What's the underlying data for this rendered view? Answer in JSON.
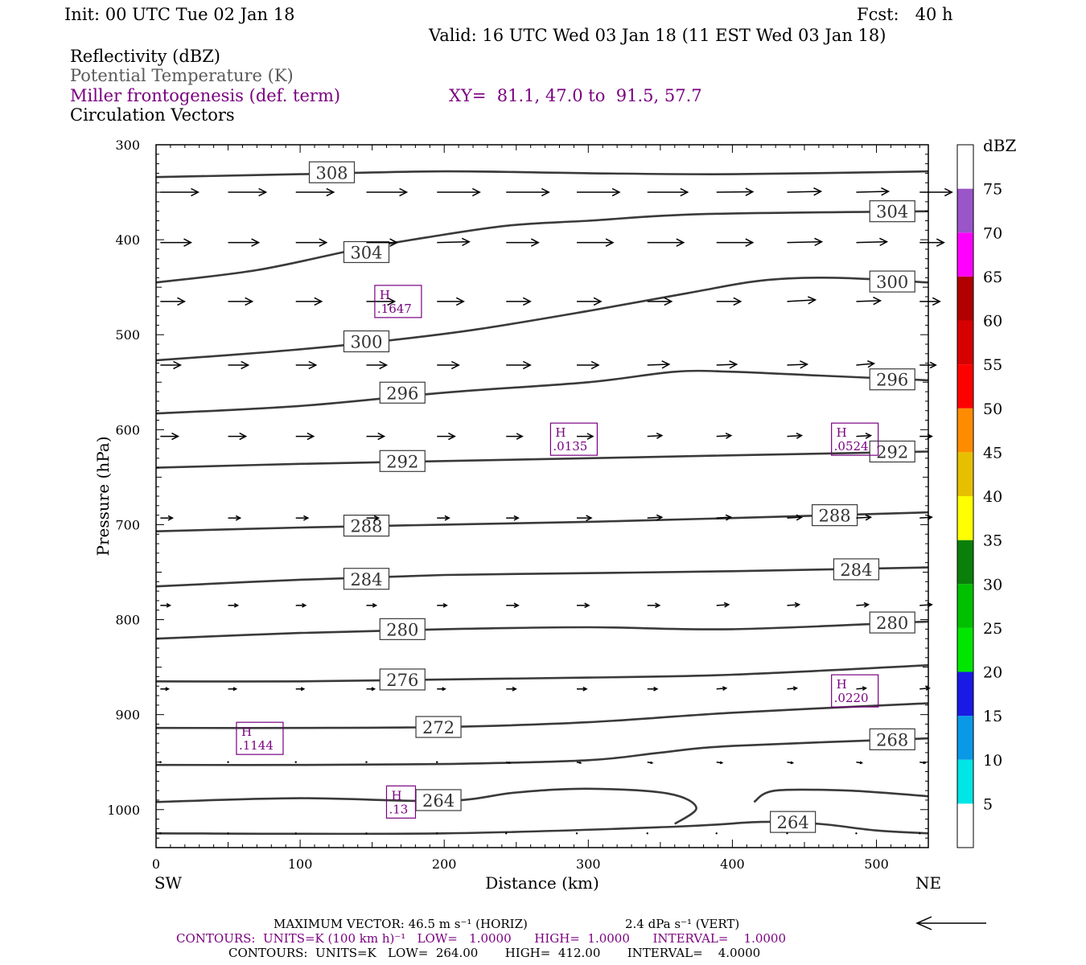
{
  "header": {
    "init": "Init: 00 UTC Tue 02 Jan 18",
    "fcst": "Fcst:   40 h",
    "valid": "Valid: 16 UTC Wed 03 Jan 18 (11 EST Wed 03 Jan 18)",
    "fields": [
      {
        "text": "Reflectivity (dBZ)",
        "color": "#000000"
      },
      {
        "text": "Potential Temperature (K)",
        "color": "#5a5a5a"
      },
      {
        "text": "Miller frontogenesis (def. term)",
        "color": "#7a0080"
      },
      {
        "text": "Circulation Vectors",
        "color": "#000000"
      }
    ],
    "xy": "XY=  81.1, 47.0 to  91.5, 57.7"
  },
  "colors": {
    "theta": "#3a3a3a",
    "fronto": "#7a0080",
    "axis": "#000000"
  },
  "chart_data": {
    "type": "cross-section",
    "xlabel": "Distance (km)",
    "ylabel": "Pressure (hPa)",
    "xlim": [
      0,
      536
    ],
    "ylim": [
      1040,
      300
    ],
    "x_ticks": [
      0,
      100,
      200,
      300,
      400,
      500
    ],
    "y_ticks": [
      300,
      400,
      500,
      600,
      700,
      800,
      900,
      1000
    ],
    "x_end_labels": {
      "left": "SW",
      "right": "NE"
    },
    "theta_contours": [
      {
        "value": 308,
        "points": [
          [
            0,
            334
          ],
          [
            100,
            331
          ],
          [
            200,
            328
          ],
          [
            300,
            330
          ],
          [
            400,
            331
          ],
          [
            536,
            328
          ]
        ],
        "labels": [
          {
            "text": "308",
            "x": 122,
            "y": 329
          }
        ]
      },
      {
        "value": 304,
        "points": [
          [
            0,
            445
          ],
          [
            70,
            432
          ],
          [
            140,
            410
          ],
          [
            190,
            397
          ],
          [
            245,
            385
          ],
          [
            300,
            380
          ],
          [
            380,
            373
          ],
          [
            536,
            370
          ]
        ],
        "labels": [
          {
            "text": "304",
            "x": 146,
            "y": 413
          },
          {
            "text": "304",
            "x": 511,
            "y": 370
          }
        ]
      },
      {
        "value": 300,
        "points": [
          [
            0,
            527
          ],
          [
            80,
            518
          ],
          [
            150,
            508
          ],
          [
            220,
            495
          ],
          [
            300,
            475
          ],
          [
            370,
            456
          ],
          [
            420,
            443
          ],
          [
            470,
            440
          ],
          [
            536,
            445
          ]
        ],
        "labels": [
          {
            "text": "300",
            "x": 146,
            "y": 507
          },
          {
            "text": "300",
            "x": 511,
            "y": 444
          }
        ]
      },
      {
        "value": 296,
        "points": [
          [
            0,
            583
          ],
          [
            100,
            575
          ],
          [
            200,
            561
          ],
          [
            300,
            550
          ],
          [
            360,
            539
          ],
          [
            400,
            539
          ],
          [
            460,
            543
          ],
          [
            536,
            548
          ]
        ],
        "labels": [
          {
            "text": "296",
            "x": 171,
            "y": 561
          },
          {
            "text": "296",
            "x": 511,
            "y": 547
          }
        ]
      },
      {
        "value": 292,
        "points": [
          [
            0,
            640
          ],
          [
            100,
            636
          ],
          [
            200,
            633
          ],
          [
            300,
            630
          ],
          [
            400,
            627
          ],
          [
            536,
            623
          ]
        ],
        "labels": [
          {
            "text": "292",
            "x": 171,
            "y": 633
          },
          {
            "text": "292",
            "x": 511,
            "y": 623
          }
        ]
      },
      {
        "value": 288,
        "points": [
          [
            0,
            707
          ],
          [
            100,
            703
          ],
          [
            200,
            700
          ],
          [
            300,
            697
          ],
          [
            400,
            693
          ],
          [
            536,
            687
          ]
        ],
        "labels": [
          {
            "text": "288",
            "x": 146,
            "y": 701
          },
          {
            "text": "288",
            "x": 471,
            "y": 690
          }
        ]
      },
      {
        "value": 284,
        "points": [
          [
            0,
            765
          ],
          [
            100,
            758
          ],
          [
            200,
            753
          ],
          [
            300,
            751
          ],
          [
            400,
            749
          ],
          [
            536,
            745
          ]
        ],
        "labels": [
          {
            "text": "284",
            "x": 146,
            "y": 757
          },
          {
            "text": "284",
            "x": 486,
            "y": 747
          }
        ]
      },
      {
        "value": 280,
        "points": [
          [
            0,
            820
          ],
          [
            100,
            814
          ],
          [
            200,
            810
          ],
          [
            300,
            808
          ],
          [
            400,
            810
          ],
          [
            536,
            802
          ]
        ],
        "labels": [
          {
            "text": "280",
            "x": 171,
            "y": 810
          },
          {
            "text": "280",
            "x": 511,
            "y": 803
          }
        ]
      },
      {
        "value": 276,
        "points": [
          [
            0,
            865
          ],
          [
            100,
            865
          ],
          [
            200,
            863
          ],
          [
            300,
            861
          ],
          [
            400,
            858
          ],
          [
            536,
            848
          ]
        ],
        "labels": [
          {
            "text": "276",
            "x": 171,
            "y": 863
          }
        ]
      },
      {
        "value": 272,
        "points": [
          [
            0,
            914
          ],
          [
            100,
            914
          ],
          [
            200,
            913
          ],
          [
            300,
            908
          ],
          [
            400,
            898
          ],
          [
            536,
            888
          ]
        ],
        "labels": [
          {
            "text": "272",
            "x": 196,
            "y": 913
          }
        ]
      },
      {
        "value": 268,
        "points": [
          [
            0,
            953
          ],
          [
            100,
            953
          ],
          [
            200,
            952
          ],
          [
            300,
            948
          ],
          [
            350,
            940
          ],
          [
            400,
            933
          ],
          [
            536,
            925
          ]
        ],
        "labels": [
          {
            "text": "268",
            "x": 511,
            "y": 926
          }
        ]
      },
      {
        "value": 264,
        "points": [
          [
            0,
            992
          ],
          [
            100,
            988
          ],
          [
            200,
            991
          ],
          [
            250,
            982
          ],
          [
            300,
            978
          ],
          [
            355,
            983
          ],
          [
            375,
            998
          ],
          [
            360,
            1015
          ]
        ],
        "labels": [
          {
            "text": "264",
            "x": 196,
            "y": 990
          }
        ]
      },
      {
        "value": 264,
        "points": [
          [
            415,
            992
          ],
          [
            430,
            980
          ],
          [
            480,
            980
          ],
          [
            536,
            986
          ]
        ],
        "labels": []
      },
      {
        "value": 264,
        "points": [
          [
            0,
            1025
          ],
          [
            200,
            1025
          ],
          [
            360,
            1018
          ],
          [
            420,
            1013
          ],
          [
            460,
            1015
          ],
          [
            500,
            1022
          ],
          [
            536,
            1025
          ]
        ],
        "labels": [
          {
            "text": "264",
            "x": 442,
            "y": 1013
          }
        ]
      }
    ],
    "frontogenesis_maxima": [
      {
        "label": "H",
        "value": ".1647",
        "x": 168,
        "y": 465
      },
      {
        "label": "H",
        "value": ".0135",
        "x": 290,
        "y": 610
      },
      {
        "label": "H",
        "value": ".0524",
        "x": 485,
        "y": 610
      },
      {
        "label": "H",
        "value": ".0220",
        "x": 485,
        "y": 875
      },
      {
        "label": "H",
        "value": ".1144",
        "x": 72,
        "y": 925
      },
      {
        "label": "H",
        "value": ".13",
        "x": 170,
        "y": 992
      }
    ],
    "vector_rows": [
      {
        "p": 350,
        "lengths": [
          47,
          47,
          47,
          50,
          53,
          53,
          53,
          50,
          45,
          42,
          40,
          40
        ],
        "tilt": [
          0,
          0,
          0,
          0,
          0,
          0,
          0,
          0,
          -0.5,
          -1,
          -1,
          0
        ]
      },
      {
        "p": 403,
        "lengths": [
          38,
          38,
          38,
          38,
          40,
          40,
          45,
          45,
          45,
          43,
          38,
          30
        ],
        "tilt": [
          0,
          0,
          0,
          0,
          -1,
          0,
          0,
          0,
          0,
          -1,
          -1,
          0
        ]
      },
      {
        "p": 465,
        "lengths": [
          30,
          30,
          32,
          35,
          33,
          30,
          30,
          30,
          30,
          35,
          30,
          25
        ],
        "tilt": [
          0,
          0,
          0,
          0,
          0,
          0,
          0,
          0,
          0,
          -2,
          -1,
          0
        ]
      },
      {
        "p": 532,
        "lengths": [
          25,
          25,
          25,
          25,
          27,
          30,
          27,
          27,
          25,
          25,
          22,
          20
        ],
        "tilt": [
          0,
          0,
          0,
          0,
          0,
          0,
          0,
          -1,
          -1,
          -1,
          -2,
          0
        ]
      },
      {
        "p": 607,
        "lengths": [
          22,
          22,
          22,
          22,
          22,
          20,
          20,
          18,
          18,
          18,
          18,
          15
        ],
        "tilt": [
          0,
          0,
          0,
          0,
          0,
          0,
          0,
          -1,
          -1,
          -1,
          -1,
          0
        ]
      },
      {
        "p": 693,
        "lengths": [
          15,
          15,
          15,
          15,
          15,
          15,
          18,
          18,
          18,
          18,
          18,
          15
        ],
        "tilt": [
          0,
          0,
          0,
          0,
          0,
          0,
          0,
          -1,
          -1,
          -1,
          -1,
          -1
        ]
      },
      {
        "p": 785,
        "lengths": [
          12,
          12,
          12,
          12,
          12,
          15,
          15,
          15,
          15,
          15,
          15,
          15
        ],
        "tilt": [
          0,
          0,
          0,
          0,
          0,
          0,
          0,
          0,
          -1,
          -1,
          -1,
          -1
        ]
      },
      {
        "p": 873,
        "lengths": [
          10,
          10,
          10,
          10,
          10,
          12,
          12,
          12,
          12,
          12,
          12,
          12
        ],
        "tilt": [
          0,
          0,
          0,
          0,
          0,
          0,
          0,
          0,
          -1,
          -1,
          -1,
          -1
        ]
      },
      {
        "p": 950,
        "lengths": [
          0,
          0,
          0,
          0,
          0,
          5,
          5,
          6,
          7,
          7,
          7,
          7
        ],
        "tilt": [
          0,
          0,
          0,
          0,
          0,
          1,
          1,
          1,
          1,
          1,
          1,
          1
        ]
      },
      {
        "p": 1025,
        "lengths": [
          0,
          0,
          0,
          0,
          0,
          0,
          0,
          0,
          0,
          0,
          0,
          0
        ],
        "tilt": [
          0,
          0,
          0,
          0,
          0,
          0,
          0,
          0,
          0,
          0,
          0,
          0
        ]
      }
    ],
    "vector_x": [
      3,
      50,
      97,
      146,
      195,
      243,
      292,
      341,
      389,
      438,
      486,
      530
    ],
    "colorbar": {
      "label": "dBZ",
      "bins": [
        {
          "lo": 0,
          "hi": 5,
          "color": "#ffffff"
        },
        {
          "lo": 5,
          "hi": 10,
          "color": "#00e5e5"
        },
        {
          "lo": 10,
          "hi": 15,
          "color": "#0a99e6"
        },
        {
          "lo": 15,
          "hi": 20,
          "color": "#1a1ae6"
        },
        {
          "lo": 20,
          "hi": 25,
          "color": "#00e600"
        },
        {
          "lo": 25,
          "hi": 30,
          "color": "#00c000"
        },
        {
          "lo": 30,
          "hi": 35,
          "color": "#0a7f0a"
        },
        {
          "lo": 35,
          "hi": 40,
          "color": "#ffff00"
        },
        {
          "lo": 40,
          "hi": 45,
          "color": "#e6c000"
        },
        {
          "lo": 45,
          "hi": 50,
          "color": "#ff8c00"
        },
        {
          "lo": 50,
          "hi": 55,
          "color": "#ff0000"
        },
        {
          "lo": 55,
          "hi": 60,
          "color": "#d70000"
        },
        {
          "lo": 60,
          "hi": 65,
          "color": "#b00000"
        },
        {
          "lo": 65,
          "hi": 70,
          "color": "#ff00ff"
        },
        {
          "lo": 70,
          "hi": 75,
          "color": "#9a55c8"
        },
        {
          "lo": 75,
          "hi": 80,
          "color": "#ffffff"
        }
      ],
      "tick_labels": [
        "5",
        "10",
        "15",
        "20",
        "25",
        "30",
        "35",
        "40",
        "45",
        "50",
        "55",
        "60",
        "65",
        "70",
        "75"
      ]
    }
  },
  "footer": {
    "max_vector": "MAXIMUM VECTOR:  46.5 m s⁻¹ (HORIZ)",
    "vert_vector": "2.4 dPa s⁻¹ (VERT)",
    "contours_fronto": "CONTOURS:  UNITS=K (100 km h)⁻¹   LOW=   1.0000      HIGH=  1.0000      INTERVAL=    1.0000",
    "contours_theta": "CONTOURS:  UNITS=K   LOW=  264.00       HIGH=  412.00       INTERVAL=    4.0000"
  }
}
